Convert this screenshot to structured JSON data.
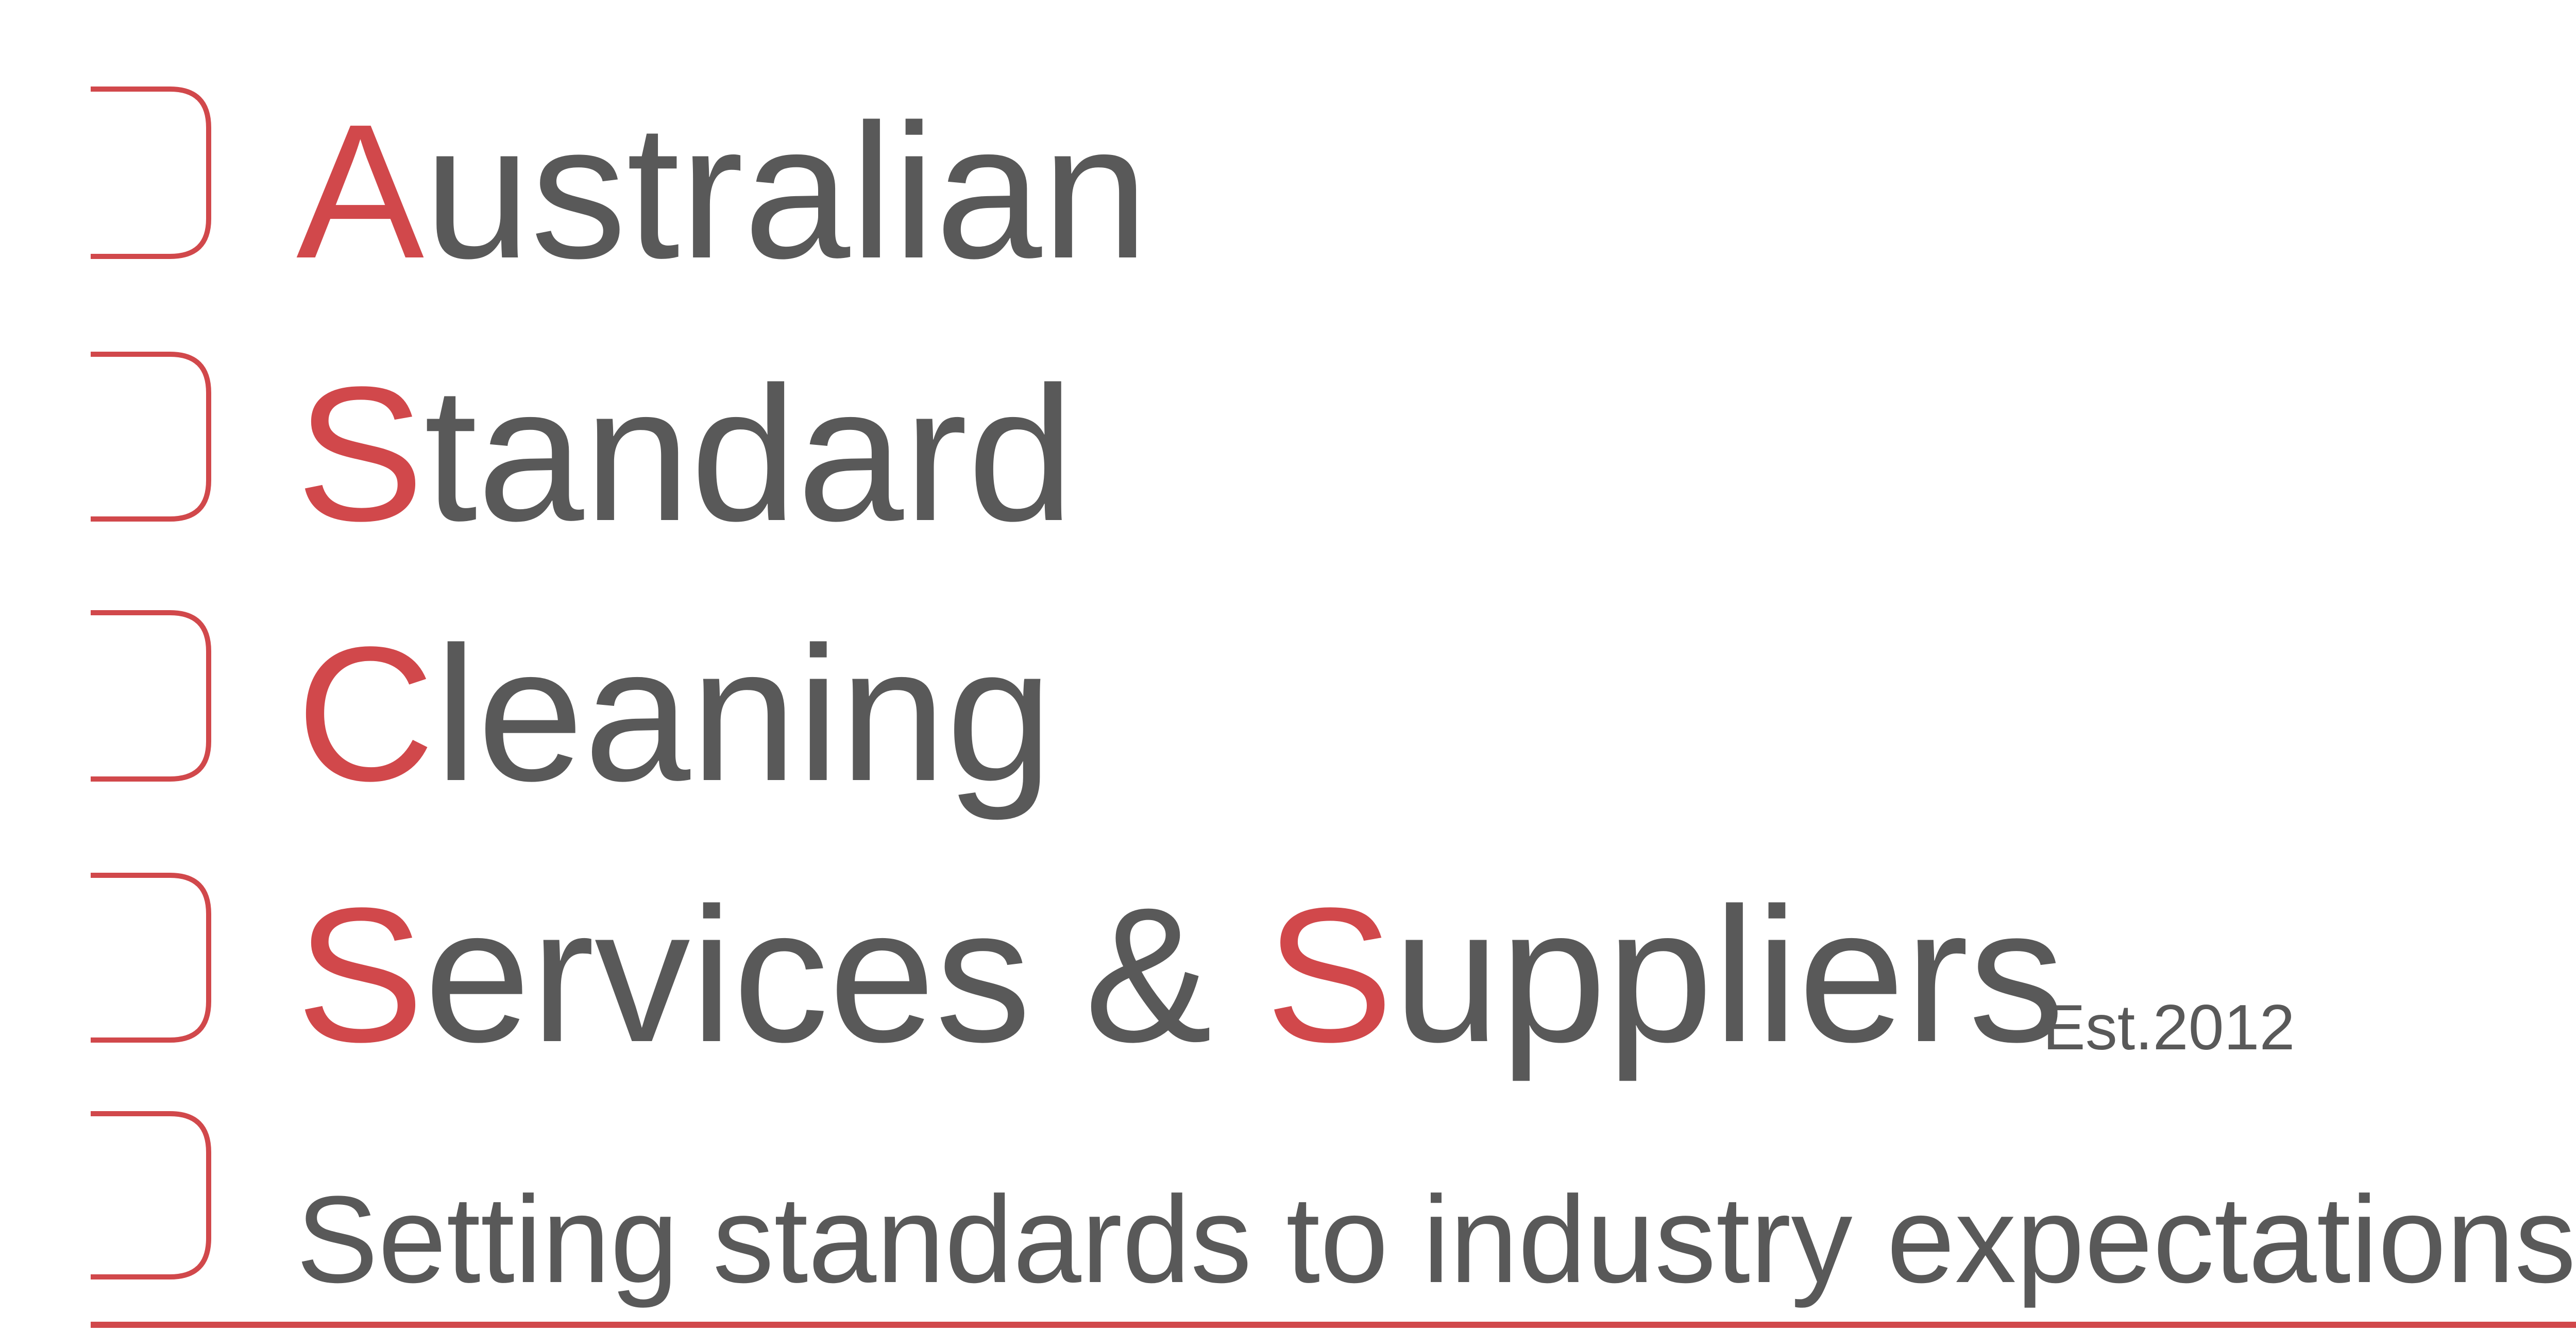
{
  "logo": {
    "lines": [
      {
        "initial": "A",
        "rest": "ustralian"
      },
      {
        "initial": "S",
        "rest": "tandard"
      },
      {
        "initial": "C",
        "rest": "leaning"
      },
      {
        "initial": "S",
        "rest": "ervices & ",
        "second_initial": "S",
        "second_rest": "uppliers"
      }
    ],
    "established": "Est.2012",
    "tagline": "Setting standards to industry expectations"
  },
  "colors": {
    "accent": "#d1484b",
    "text": "#595959",
    "background": "#ffffff"
  }
}
